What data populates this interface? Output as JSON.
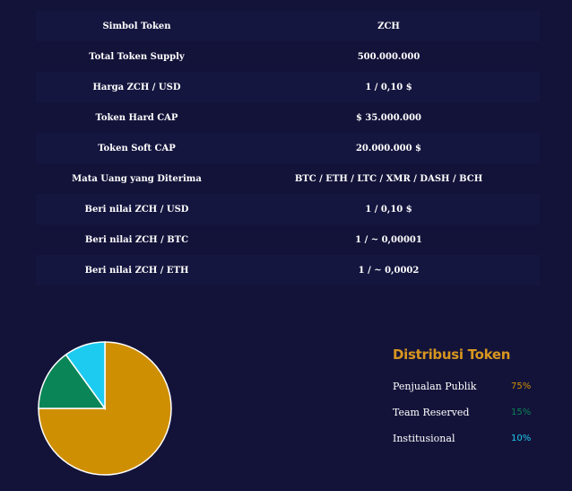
{
  "token_info": {
    "rows": [
      {
        "label": "Simbol Token",
        "value": "ZCH"
      },
      {
        "label": "Total Token Supply",
        "value": "500.000.000"
      },
      {
        "label": "Harga ZCH / USD",
        "value": "1 / 0,10 $"
      },
      {
        "label": "Token Hard CAP",
        "value": "$ 35.000.000"
      },
      {
        "label": "Token Soft CAP",
        "value": "20.000.000 $"
      },
      {
        "label": "Mata Uang yang Diterima",
        "value": "BTC / ETH / LTC / XMR / DASH / BCH"
      },
      {
        "label": "Beri nilai ZCH / USD",
        "value": "1 / 0,10 $"
      },
      {
        "label": "Beri nilai ZCH / BTC",
        "value": "1 / ~ 0,00001"
      },
      {
        "label": "Beri nilai ZCH / ETH",
        "value": "1 / ~ 0,0002"
      }
    ]
  },
  "distribution": {
    "title": "Distribusi Token"
  },
  "chart_data": {
    "type": "pie",
    "title": "",
    "slices": [
      {
        "label": "Penjualan Publik",
        "value": 75,
        "display": "75%",
        "color": "#cf8f02"
      },
      {
        "label": "Team Reserved",
        "value": 15,
        "display": "15%",
        "color": "#0a8557"
      },
      {
        "label": "Institusional",
        "value": 10,
        "display": "10%",
        "color": "#1ecbf0"
      }
    ],
    "legend_position": "right"
  }
}
